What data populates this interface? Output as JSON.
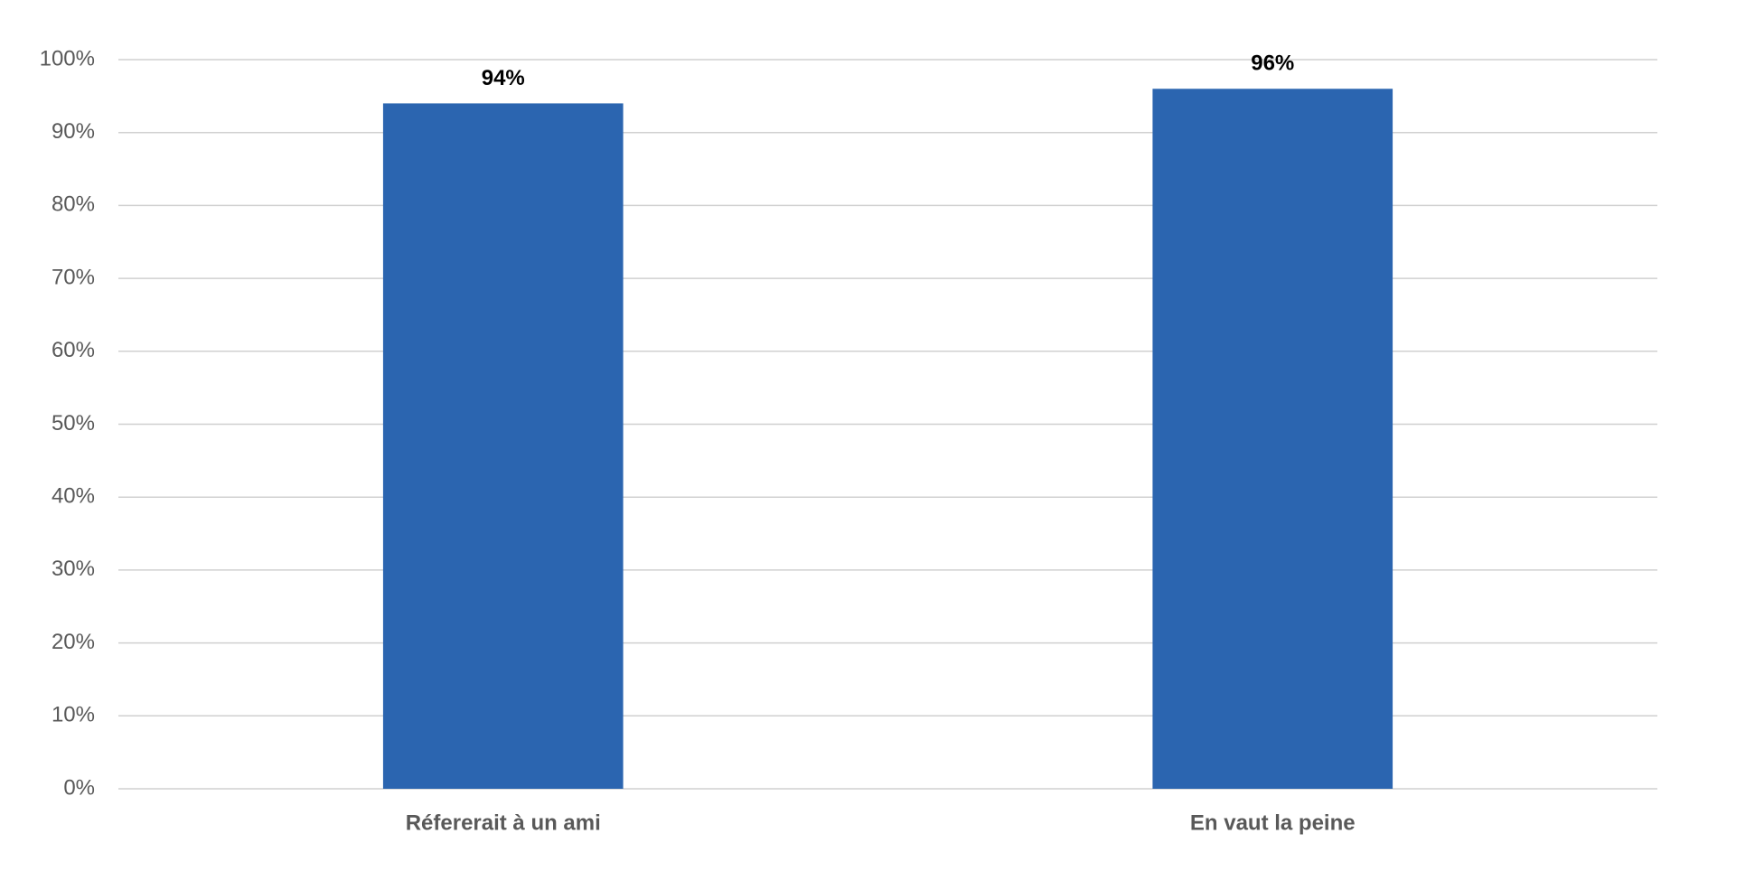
{
  "chart_data": {
    "type": "bar",
    "categories": [
      "Réfererait à un ami",
      "En vaut la peine"
    ],
    "values": [
      94,
      96
    ],
    "value_labels": [
      "94%",
      "96%"
    ],
    "color": "#2b65b0",
    "ylim": [
      0,
      100
    ],
    "yticks": [
      {
        "value": 0,
        "label": "0%"
      },
      {
        "value": 10,
        "label": "10%"
      },
      {
        "value": 20,
        "label": "20%"
      },
      {
        "value": 30,
        "label": "30%"
      },
      {
        "value": 40,
        "label": "40%"
      },
      {
        "value": 50,
        "label": "50%"
      },
      {
        "value": 60,
        "label": "60%"
      },
      {
        "value": 70,
        "label": "70%"
      },
      {
        "value": 80,
        "label": "80%"
      },
      {
        "value": 90,
        "label": "90%"
      },
      {
        "value": 100,
        "label": "100%"
      }
    ],
    "grid": true
  }
}
